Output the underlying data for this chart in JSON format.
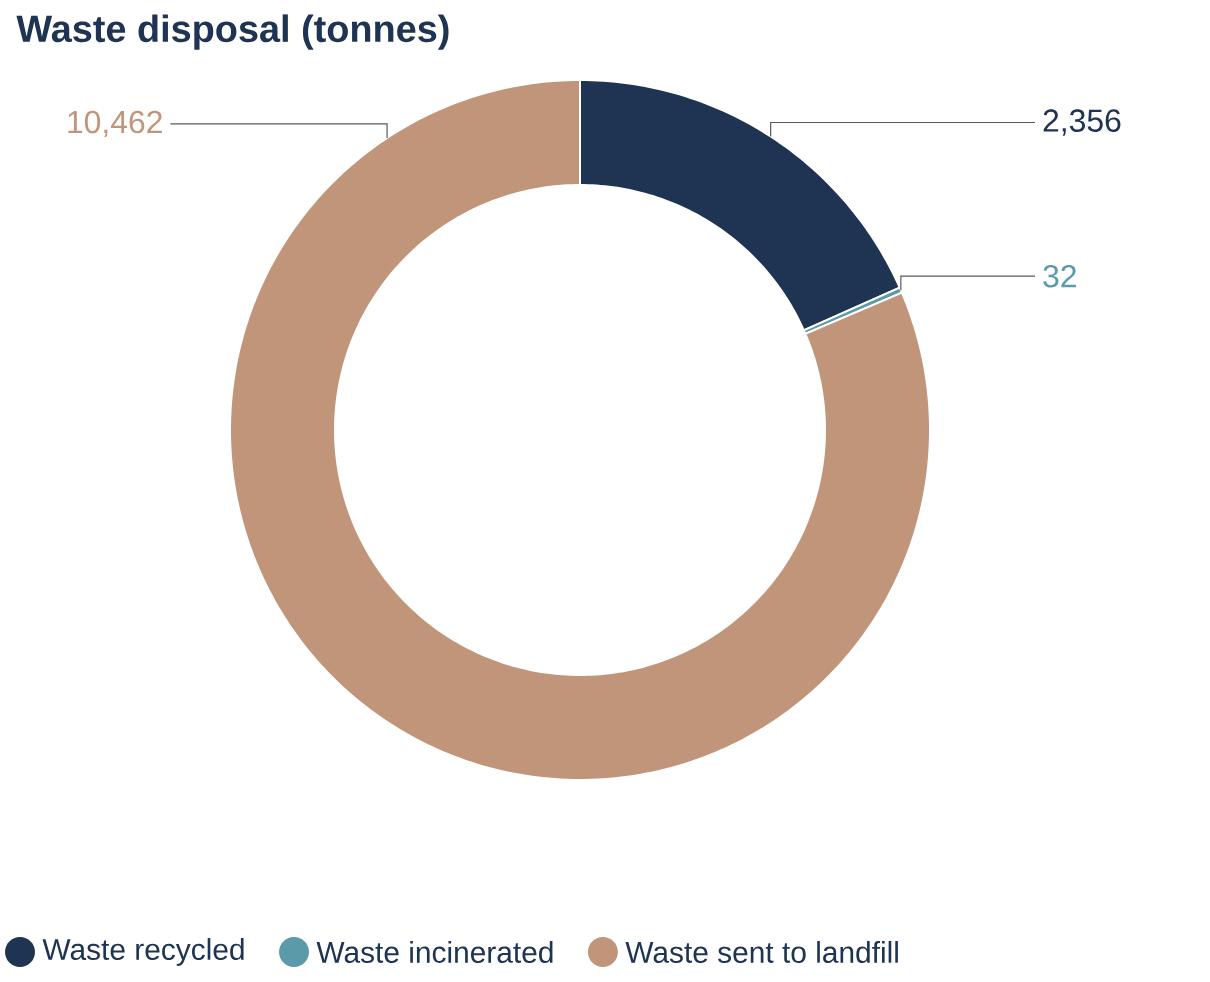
{
  "chart_data": {
    "type": "donut",
    "title": "Waste disposal (tonnes)",
    "categories": [
      "Waste recycled",
      "Waste incinerated",
      "Waste sent to landfill"
    ],
    "values": [
      2356,
      32,
      10462
    ],
    "value_labels": [
      "2,356",
      "32",
      "10,462"
    ],
    "colors": [
      "#1f3352",
      "#5b9aa9",
      "#c0957a"
    ],
    "legend": "bottom"
  }
}
